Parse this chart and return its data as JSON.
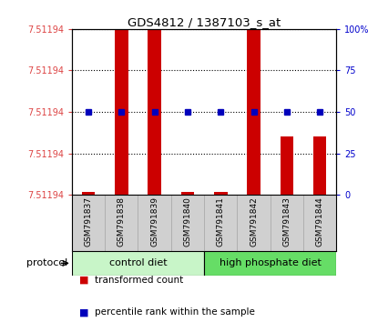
{
  "title": "GDS4812 / 1387103_s_at",
  "samples": [
    "GSM791837",
    "GSM791838",
    "GSM791839",
    "GSM791840",
    "GSM791841",
    "GSM791842",
    "GSM791843",
    "GSM791844"
  ],
  "red_bar_pct": [
    2,
    100,
    100,
    2,
    2,
    100,
    35,
    35
  ],
  "blue_dot_pct": [
    50,
    50,
    50,
    50,
    50,
    50,
    50,
    50
  ],
  "yleft_label": "7.51194",
  "yright_labels": [
    "0",
    "25",
    "50",
    "75",
    "100%"
  ],
  "protocol_labels": [
    "control diet",
    "high phosphate diet"
  ],
  "protocol_groups": [
    4,
    4
  ],
  "protocol_colors": [
    "#c8f5c8",
    "#66dd66"
  ],
  "legend_red_label": "transformed count",
  "legend_blue_label": "percentile rank within the sample",
  "bar_color": "#cc0000",
  "dot_color": "#0000bb",
  "bg_color": "#ffffff",
  "left_tick_color": "#dd4444",
  "right_tick_color": "#0000cc",
  "sample_bg": "#d0d0d0"
}
